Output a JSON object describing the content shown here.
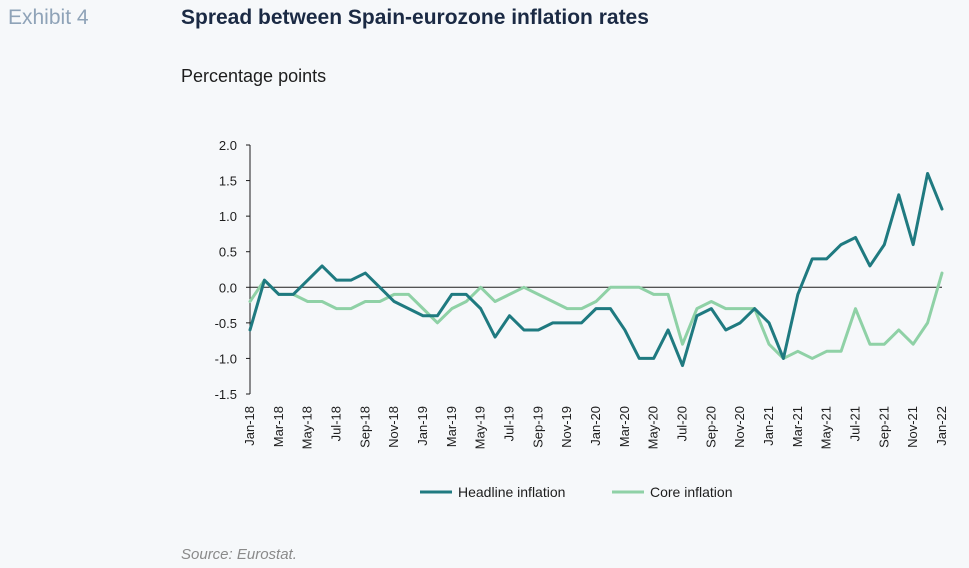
{
  "header": {
    "exhibit": "Exhibit 4",
    "title": "Spread between Spain-eurozone inflation rates",
    "subtitle": "Percentage points"
  },
  "footer": {
    "source": "Source: Eurostat."
  },
  "colors": {
    "headline": "#1f7a80",
    "core": "#8fd1a6",
    "axis": "#1d1d1d"
  },
  "chart_data": {
    "type": "line",
    "x_labels": [
      "Jan-18",
      "Mar-18",
      "May-18",
      "Jul-18",
      "Sep-18",
      "Nov-18",
      "Jan-19",
      "Mar-19",
      "May-19",
      "Jul-19",
      "Sep-19",
      "Nov-19",
      "Jan-20",
      "Mar-20",
      "May-20",
      "Jul-20",
      "Sep-20",
      "Nov-20",
      "Jan-21",
      "Mar-21",
      "May-21",
      "Jul-21",
      "Sep-21",
      "Nov-21",
      "Jan-22"
    ],
    "y_ticks": [
      "2.0",
      "1.5",
      "1.0",
      "0.5",
      "0.0",
      "-0.5",
      "-1.0",
      "-1.5"
    ],
    "ylim": [
      -1.5,
      2.0
    ],
    "legend_position": "bottom",
    "series": [
      {
        "name": "Headline inflation",
        "values": [
          -0.6,
          0.1,
          -0.1,
          -0.1,
          0.1,
          0.3,
          0.1,
          0.1,
          0.2,
          0.0,
          -0.2,
          -0.3,
          -0.4,
          -0.4,
          -0.1,
          -0.1,
          -0.3,
          -0.7,
          -0.4,
          -0.6,
          -0.6,
          -0.5,
          -0.5,
          -0.5,
          -0.3,
          -0.3,
          -0.6,
          -1.0,
          -1.0,
          -0.6,
          -1.1,
          -0.4,
          -0.3,
          -0.6,
          -0.5,
          -0.3,
          -0.5,
          -1.0,
          -0.1,
          0.4,
          0.4,
          0.6,
          0.7,
          0.3,
          0.6,
          1.3,
          0.6,
          1.6,
          1.1
        ]
      },
      {
        "name": "Core inflation",
        "values": [
          -0.2,
          0.1,
          -0.1,
          -0.1,
          -0.2,
          -0.2,
          -0.3,
          -0.3,
          -0.2,
          -0.2,
          -0.1,
          -0.1,
          -0.3,
          -0.5,
          -0.3,
          -0.2,
          0.0,
          -0.2,
          -0.1,
          0.0,
          -0.1,
          -0.2,
          -0.3,
          -0.3,
          -0.2,
          0.0,
          0.0,
          0.0,
          -0.1,
          -0.1,
          -0.8,
          -0.3,
          -0.2,
          -0.3,
          -0.3,
          -0.3,
          -0.8,
          -1.0,
          -0.9,
          -1.0,
          -0.9,
          -0.9,
          -0.3,
          -0.8,
          -0.8,
          -0.6,
          -0.8,
          -0.5,
          0.2
        ]
      }
    ]
  }
}
